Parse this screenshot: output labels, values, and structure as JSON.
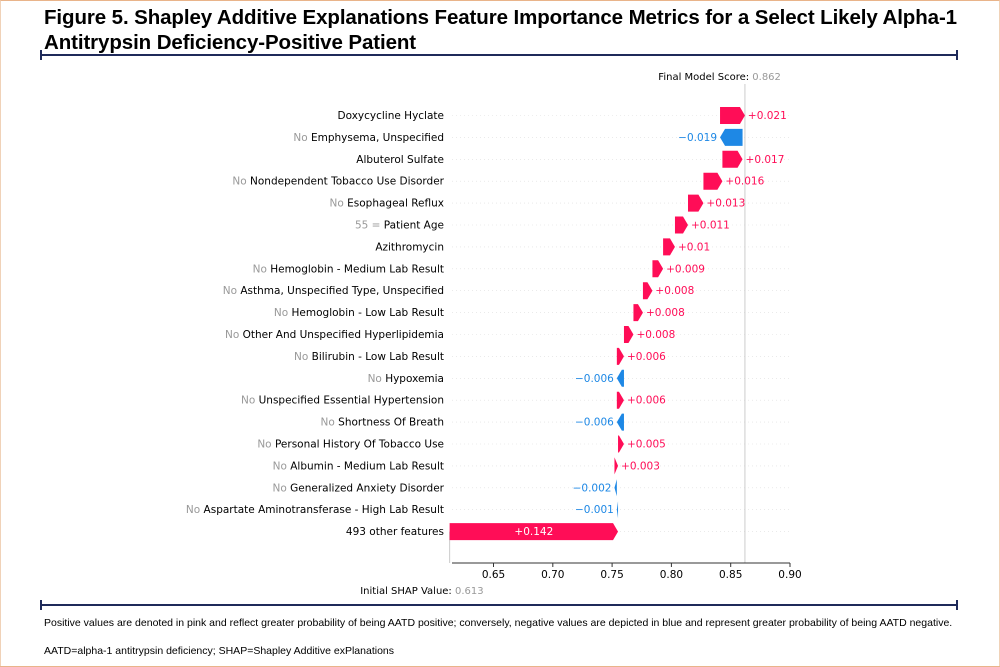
{
  "figure": {
    "title": "Figure 5. Shapley Additive Explanations Feature Importance Metrics for a Select Likely Alpha-1 Antitrypsin Deficiency-Positive Patient",
    "footnote_1": "Positive values are denoted in pink and reflect greater probability of being AATD positive; conversely, negative values are depicted in blue and represent greater probability of being AATD negative.",
    "footnote_2": "AATD=alpha-1 antitrypsin deficiency; SHAP=Shapley Additive exPlanations"
  },
  "chart_data": {
    "type": "waterfall",
    "final_label": "Final Model Score:",
    "final_value": "0.862",
    "initial_label": "Initial SHAP Value:",
    "initial_value": "0.613",
    "base_value": 0.613,
    "final_score": 0.862,
    "xlim": [
      0.615,
      0.9
    ],
    "xticks": [
      "0.65",
      "0.70",
      "0.75",
      "0.80",
      "0.85",
      "0.90"
    ],
    "colors": {
      "positive": "#ff0d57",
      "negative": "#1e88e5",
      "muted": "#999999",
      "gridline": "#cccccc"
    },
    "features": [
      {
        "prefix": "",
        "name": "Doxycycline Hyclate",
        "value": 0.021,
        "label": "+0.021"
      },
      {
        "prefix": "No",
        "name": "Emphysema, Unspecified",
        "value": -0.019,
        "label": "−0.019"
      },
      {
        "prefix": "",
        "name": "Albuterol Sulfate",
        "value": 0.017,
        "label": "+0.017"
      },
      {
        "prefix": "No",
        "name": "Nondependent Tobacco Use Disorder",
        "value": 0.016,
        "label": "+0.016"
      },
      {
        "prefix": "No",
        "name": "Esophageal Reflux",
        "value": 0.013,
        "label": "+0.013"
      },
      {
        "prefix": "55 =",
        "name": "Patient Age",
        "value": 0.011,
        "label": "+0.011"
      },
      {
        "prefix": "",
        "name": "Azithromycin",
        "value": 0.01,
        "label": "+0.01"
      },
      {
        "prefix": "No",
        "name": "Hemoglobin - Medium Lab Result",
        "value": 0.009,
        "label": "+0.009"
      },
      {
        "prefix": "No",
        "name": "Asthma, Unspecified Type, Unspecified",
        "value": 0.008,
        "label": "+0.008"
      },
      {
        "prefix": "No",
        "name": "Hemoglobin - Low Lab Result",
        "value": 0.008,
        "label": "+0.008"
      },
      {
        "prefix": "No",
        "name": "Other And Unspecified Hyperlipidemia",
        "value": 0.008,
        "label": "+0.008"
      },
      {
        "prefix": "No",
        "name": "Bilirubin - Low Lab Result",
        "value": 0.006,
        "label": "+0.006"
      },
      {
        "prefix": "No",
        "name": "Hypoxemia",
        "value": -0.006,
        "label": "−0.006"
      },
      {
        "prefix": "No",
        "name": "Unspecified Essential Hypertension",
        "value": 0.006,
        "label": "+0.006"
      },
      {
        "prefix": "No",
        "name": "Shortness Of Breath",
        "value": -0.006,
        "label": "−0.006"
      },
      {
        "prefix": "No",
        "name": "Personal History Of Tobacco Use",
        "value": 0.005,
        "label": "+0.005"
      },
      {
        "prefix": "No",
        "name": "Albumin - Medium Lab Result",
        "value": 0.003,
        "label": "+0.003"
      },
      {
        "prefix": "No",
        "name": "Generalized Anxiety Disorder",
        "value": -0.002,
        "label": "−0.002"
      },
      {
        "prefix": "No",
        "name": "Aspartate Aminotransferase - High Lab Result",
        "value": -0.001,
        "label": "−0.001"
      },
      {
        "prefix": "",
        "name": "493 other features",
        "value": 0.142,
        "label": "+0.142"
      }
    ]
  }
}
